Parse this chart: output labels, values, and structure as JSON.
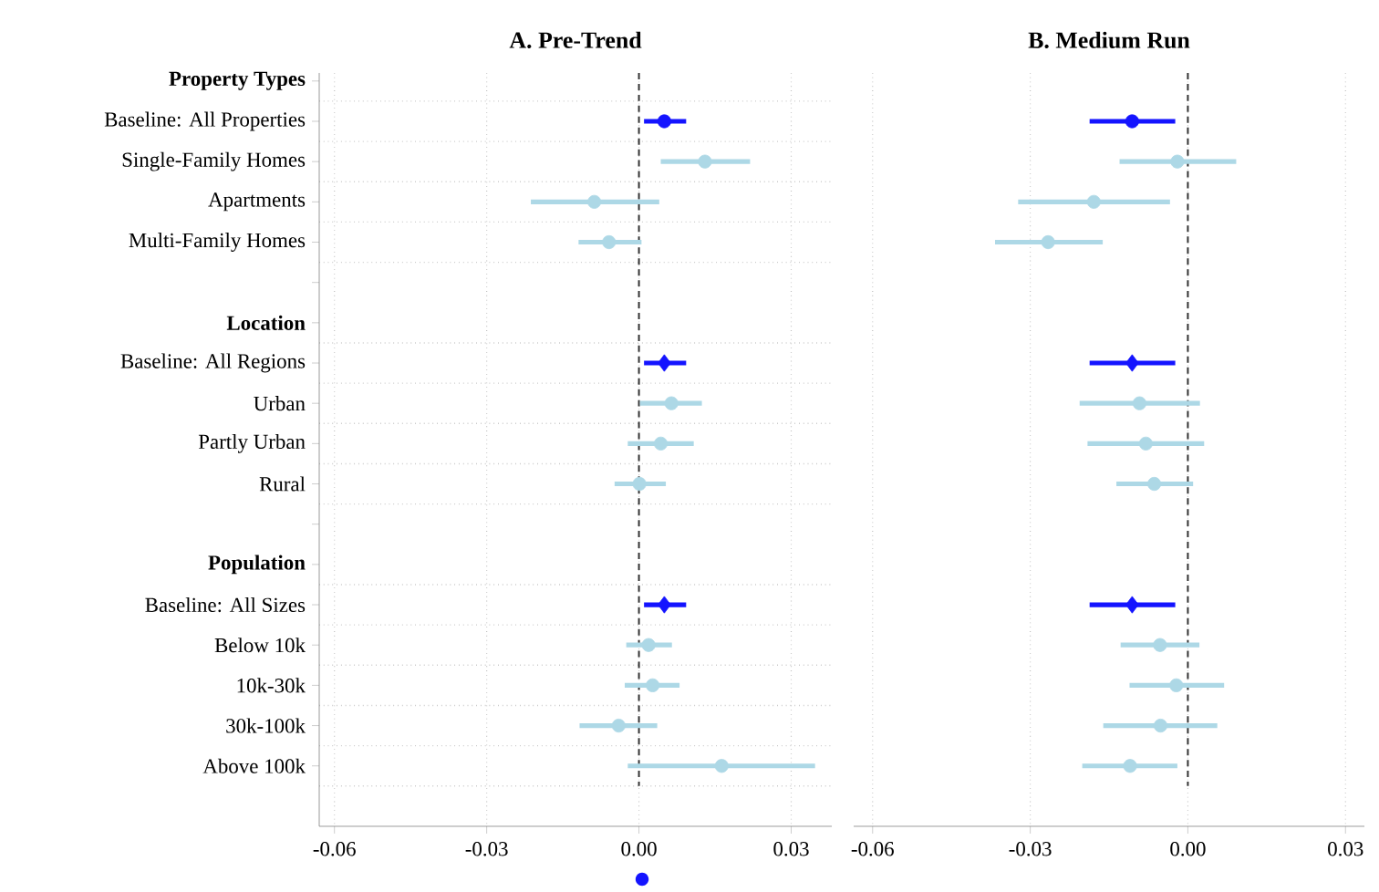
{
  "chart_data": [
    {
      "type": "scatter",
      "orientation": "horizontal",
      "title": "A. Pre-Trend",
      "categories": [
        "**Property Types**",
        "Baseline: All Properties",
        "Single-Family Homes",
        "Apartments",
        "Multi-Family Homes",
        null,
        "**Location**",
        "Baseline: All Regions",
        "Urban",
        "Partly Urban",
        "Rural",
        null,
        "**Population**",
        "Baseline: All Sizes",
        "Below 10k",
        "10k-30k",
        "30k-100k",
        "Above 100k"
      ],
      "xlim": [
        -0.063,
        0.038
      ],
      "xticks": [
        {
          "value": -0.06,
          "label": "-0.06"
        },
        {
          "value": -0.03,
          "label": "-0.03"
        },
        {
          "value": 0,
          "label": "0.00"
        },
        {
          "value": 0.03,
          "label": "0.03"
        }
      ],
      "grid": true,
      "ref_lines": [
        {
          "axis": "x",
          "value": 0,
          "color": "#333333",
          "line_style": "dashed"
        }
      ],
      "series": [
        {
          "color": "#1414ff",
          "marker": "circle",
          "values": [
            null,
            0.005,
            null,
            null,
            null,
            null,
            null,
            null,
            null,
            null,
            null,
            null,
            null,
            null,
            null,
            null,
            null,
            null
          ],
          "errors": [
            null,
            [
              0.001,
              0.0093
            ],
            null,
            null,
            null,
            null,
            null,
            null,
            null,
            null,
            null,
            null,
            null,
            null,
            null,
            null,
            null,
            null
          ]
        },
        {
          "color": "#1414ff",
          "marker": "diamond",
          "values": [
            null,
            null,
            null,
            null,
            null,
            null,
            null,
            0.005,
            null,
            null,
            null,
            null,
            null,
            0.005,
            null,
            null,
            null,
            null
          ],
          "errors": [
            null,
            null,
            null,
            null,
            null,
            null,
            null,
            [
              0.001,
              0.0093
            ],
            null,
            null,
            null,
            null,
            null,
            [
              0.001,
              0.0093
            ],
            null,
            null,
            null,
            null
          ]
        },
        {
          "color": "#add8e6",
          "marker": "circle",
          "values": [
            null,
            null,
            0.013,
            -0.0088,
            -0.0059,
            null,
            null,
            null,
            0.0064,
            0.0043,
            0.0001,
            null,
            null,
            null,
            0.0019,
            0.0027,
            -0.004,
            0.0163
          ],
          "errors": [
            null,
            null,
            [
              0.0043,
              0.0219
            ],
            [
              -0.0213,
              0.004
            ],
            [
              -0.0119,
              0.0005
            ],
            null,
            null,
            null,
            [
              0.0002,
              0.0124
            ],
            [
              -0.0022,
              0.0108
            ],
            [
              -0.0048,
              0.0053
            ],
            null,
            null,
            null,
            [
              -0.0025,
              0.0065
            ],
            [
              -0.0028,
              0.008
            ],
            [
              -0.0117,
              0.0036
            ],
            [
              -0.0022,
              0.0347
            ]
          ]
        }
      ]
    },
    {
      "type": "scatter",
      "orientation": "horizontal",
      "title": "B. Medium Run",
      "tick_labels": "x",
      "xlim": [
        -0.0636,
        0.0336
      ],
      "xticks": [
        {
          "value": -0.06,
          "label": "-0.06"
        },
        {
          "value": -0.03,
          "label": "-0.03"
        },
        {
          "value": 0,
          "label": "0.00"
        },
        {
          "value": 0.03,
          "label": "0.03"
        }
      ],
      "grid": true,
      "ref_lines": [
        {
          "axis": "x",
          "value": 0,
          "color": "#333333",
          "line_style": "dashed"
        }
      ],
      "series": [
        {
          "color": "#1414ff",
          "marker": "circle",
          "values": [
            null,
            -0.0106,
            null,
            null,
            null,
            null,
            null,
            null,
            null,
            null,
            null,
            null,
            null,
            null,
            null,
            null,
            null,
            null
          ],
          "errors": [
            null,
            [
              -0.0187,
              -0.0024
            ],
            null,
            null,
            null,
            null,
            null,
            null,
            null,
            null,
            null,
            null,
            null,
            null,
            null,
            null,
            null,
            null
          ]
        },
        {
          "color": "#1414ff",
          "marker": "diamond",
          "values": [
            null,
            null,
            null,
            null,
            null,
            null,
            null,
            -0.0106,
            null,
            null,
            null,
            null,
            null,
            -0.0106,
            null,
            null,
            null,
            null
          ],
          "errors": [
            null,
            null,
            null,
            null,
            null,
            null,
            null,
            [
              -0.0187,
              -0.0024
            ],
            null,
            null,
            null,
            null,
            null,
            [
              -0.0187,
              -0.0024
            ],
            null,
            null,
            null,
            null
          ]
        },
        {
          "color": "#add8e6",
          "marker": "circle",
          "values": [
            null,
            null,
            -0.002,
            -0.0179,
            -0.0266,
            null,
            null,
            null,
            -0.0092,
            -0.008,
            -0.0064,
            null,
            null,
            null,
            -0.0053,
            -0.0022,
            -0.0052,
            -0.011
          ],
          "errors": [
            null,
            null,
            [
              -0.013,
              0.0092
            ],
            [
              -0.0323,
              -0.0034
            ],
            [
              -0.0367,
              -0.0162
            ],
            null,
            null,
            null,
            [
              -0.0206,
              0.0023
            ],
            [
              -0.0191,
              0.0031
            ],
            [
              -0.0136,
              0.001
            ],
            null,
            null,
            null,
            [
              -0.0128,
              0.0022
            ],
            [
              -0.0111,
              0.0069
            ],
            [
              -0.0161,
              0.0056
            ],
            [
              -0.0201,
              -0.002
            ]
          ]
        }
      ]
    }
  ]
}
